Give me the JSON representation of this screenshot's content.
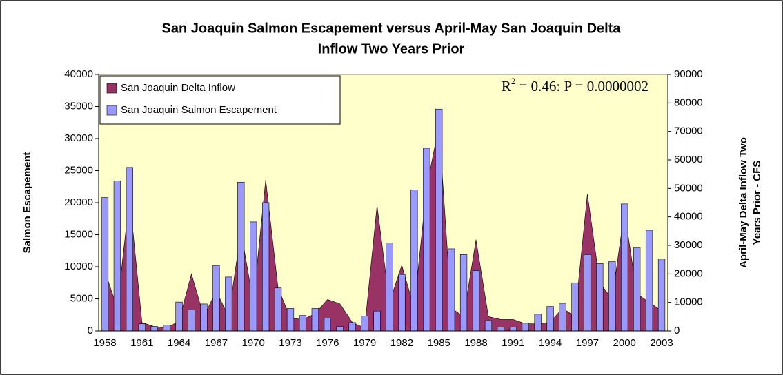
{
  "chart_data": {
    "type": "bar-area",
    "title": [
      "San Joaquin Salmon Escapement versus April-May San Joaquin Delta",
      "Inflow Two Years Prior"
    ],
    "y_label": "Salmon Escapement",
    "y2_label": [
      "April-May Delta Inflow Two",
      "Years Prior - CFS"
    ],
    "annotation": {
      "base": "R",
      "sup": "2",
      "rest": " = 0.46: P = 0.0000002"
    },
    "categories": [
      "1958",
      null,
      null,
      "1961",
      null,
      null,
      "1964",
      null,
      null,
      "1967",
      null,
      null,
      "1970",
      null,
      null,
      "1973",
      null,
      null,
      "1976",
      null,
      null,
      "1979",
      null,
      null,
      "1982",
      null,
      null,
      "1985",
      null,
      null,
      "1988",
      null,
      null,
      "1991",
      null,
      null,
      "1994",
      null,
      null,
      "1997",
      null,
      null,
      "2000",
      null,
      null,
      "2003"
    ],
    "series": [
      {
        "name": "San Joaquin Delta Inflow",
        "type": "area",
        "axis": "y2",
        "color": "#993366",
        "values": [
          21000,
          8000,
          47000,
          3000,
          1500,
          1000,
          3500,
          20000,
          5000,
          14000,
          5000,
          35000,
          10000,
          53000,
          15000,
          4500,
          4000,
          6000,
          11000,
          9500,
          3000,
          1000,
          44000,
          10000,
          23000,
          8000,
          50000,
          72000,
          8000,
          5000,
          32000,
          5000,
          4000,
          4000,
          2500,
          2500,
          3000,
          8000,
          5000,
          48000,
          17000,
          11000,
          42000,
          13000,
          10000,
          7000
        ]
      },
      {
        "name": "San Joaquin Salmon Escapement",
        "type": "bar",
        "axis": "y",
        "color": "#9999ff",
        "values": [
          20800,
          23400,
          25500,
          1100,
          700,
          900,
          4500,
          3300,
          4200,
          10200,
          8400,
          23200,
          17000,
          20000,
          6700,
          3500,
          2400,
          3500,
          2000,
          700,
          1300,
          2300,
          3100,
          13700,
          8800,
          22000,
          28500,
          34600,
          12800,
          11900,
          9400,
          1600,
          600,
          600,
          1200,
          2600,
          3800,
          4300,
          7500,
          11900,
          10500,
          10800,
          19800,
          13000,
          15700,
          11200
        ]
      }
    ],
    "ylim": [
      0,
      40000
    ],
    "yticks": [
      0,
      5000,
      10000,
      15000,
      20000,
      25000,
      30000,
      35000,
      40000
    ],
    "y2lim": [
      0,
      90000
    ],
    "y2ticks": [
      0,
      10000,
      20000,
      30000,
      40000,
      50000,
      60000,
      70000,
      80000,
      90000
    ],
    "grid": false,
    "legend": "top-left",
    "background": "#ffffcc"
  }
}
